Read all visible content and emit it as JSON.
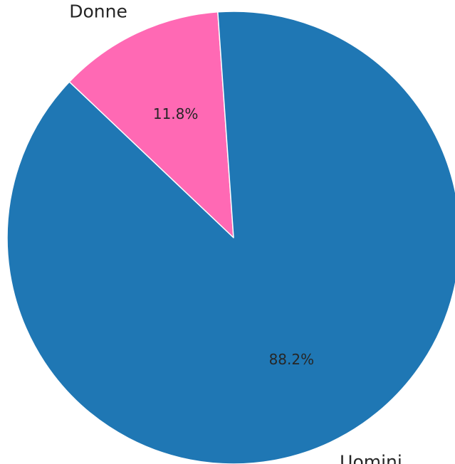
{
  "chart_data": {
    "type": "pie",
    "start_angle_deg": 94,
    "direction": "counterclockwise",
    "slices": [
      {
        "label": "Donne",
        "value": 11.8,
        "pct_label": "11.8%",
        "color": "#ff69b4"
      },
      {
        "label": "Uomini",
        "value": 88.2,
        "pct_label": "88.2%",
        "color": "#1f77b4"
      }
    ]
  }
}
